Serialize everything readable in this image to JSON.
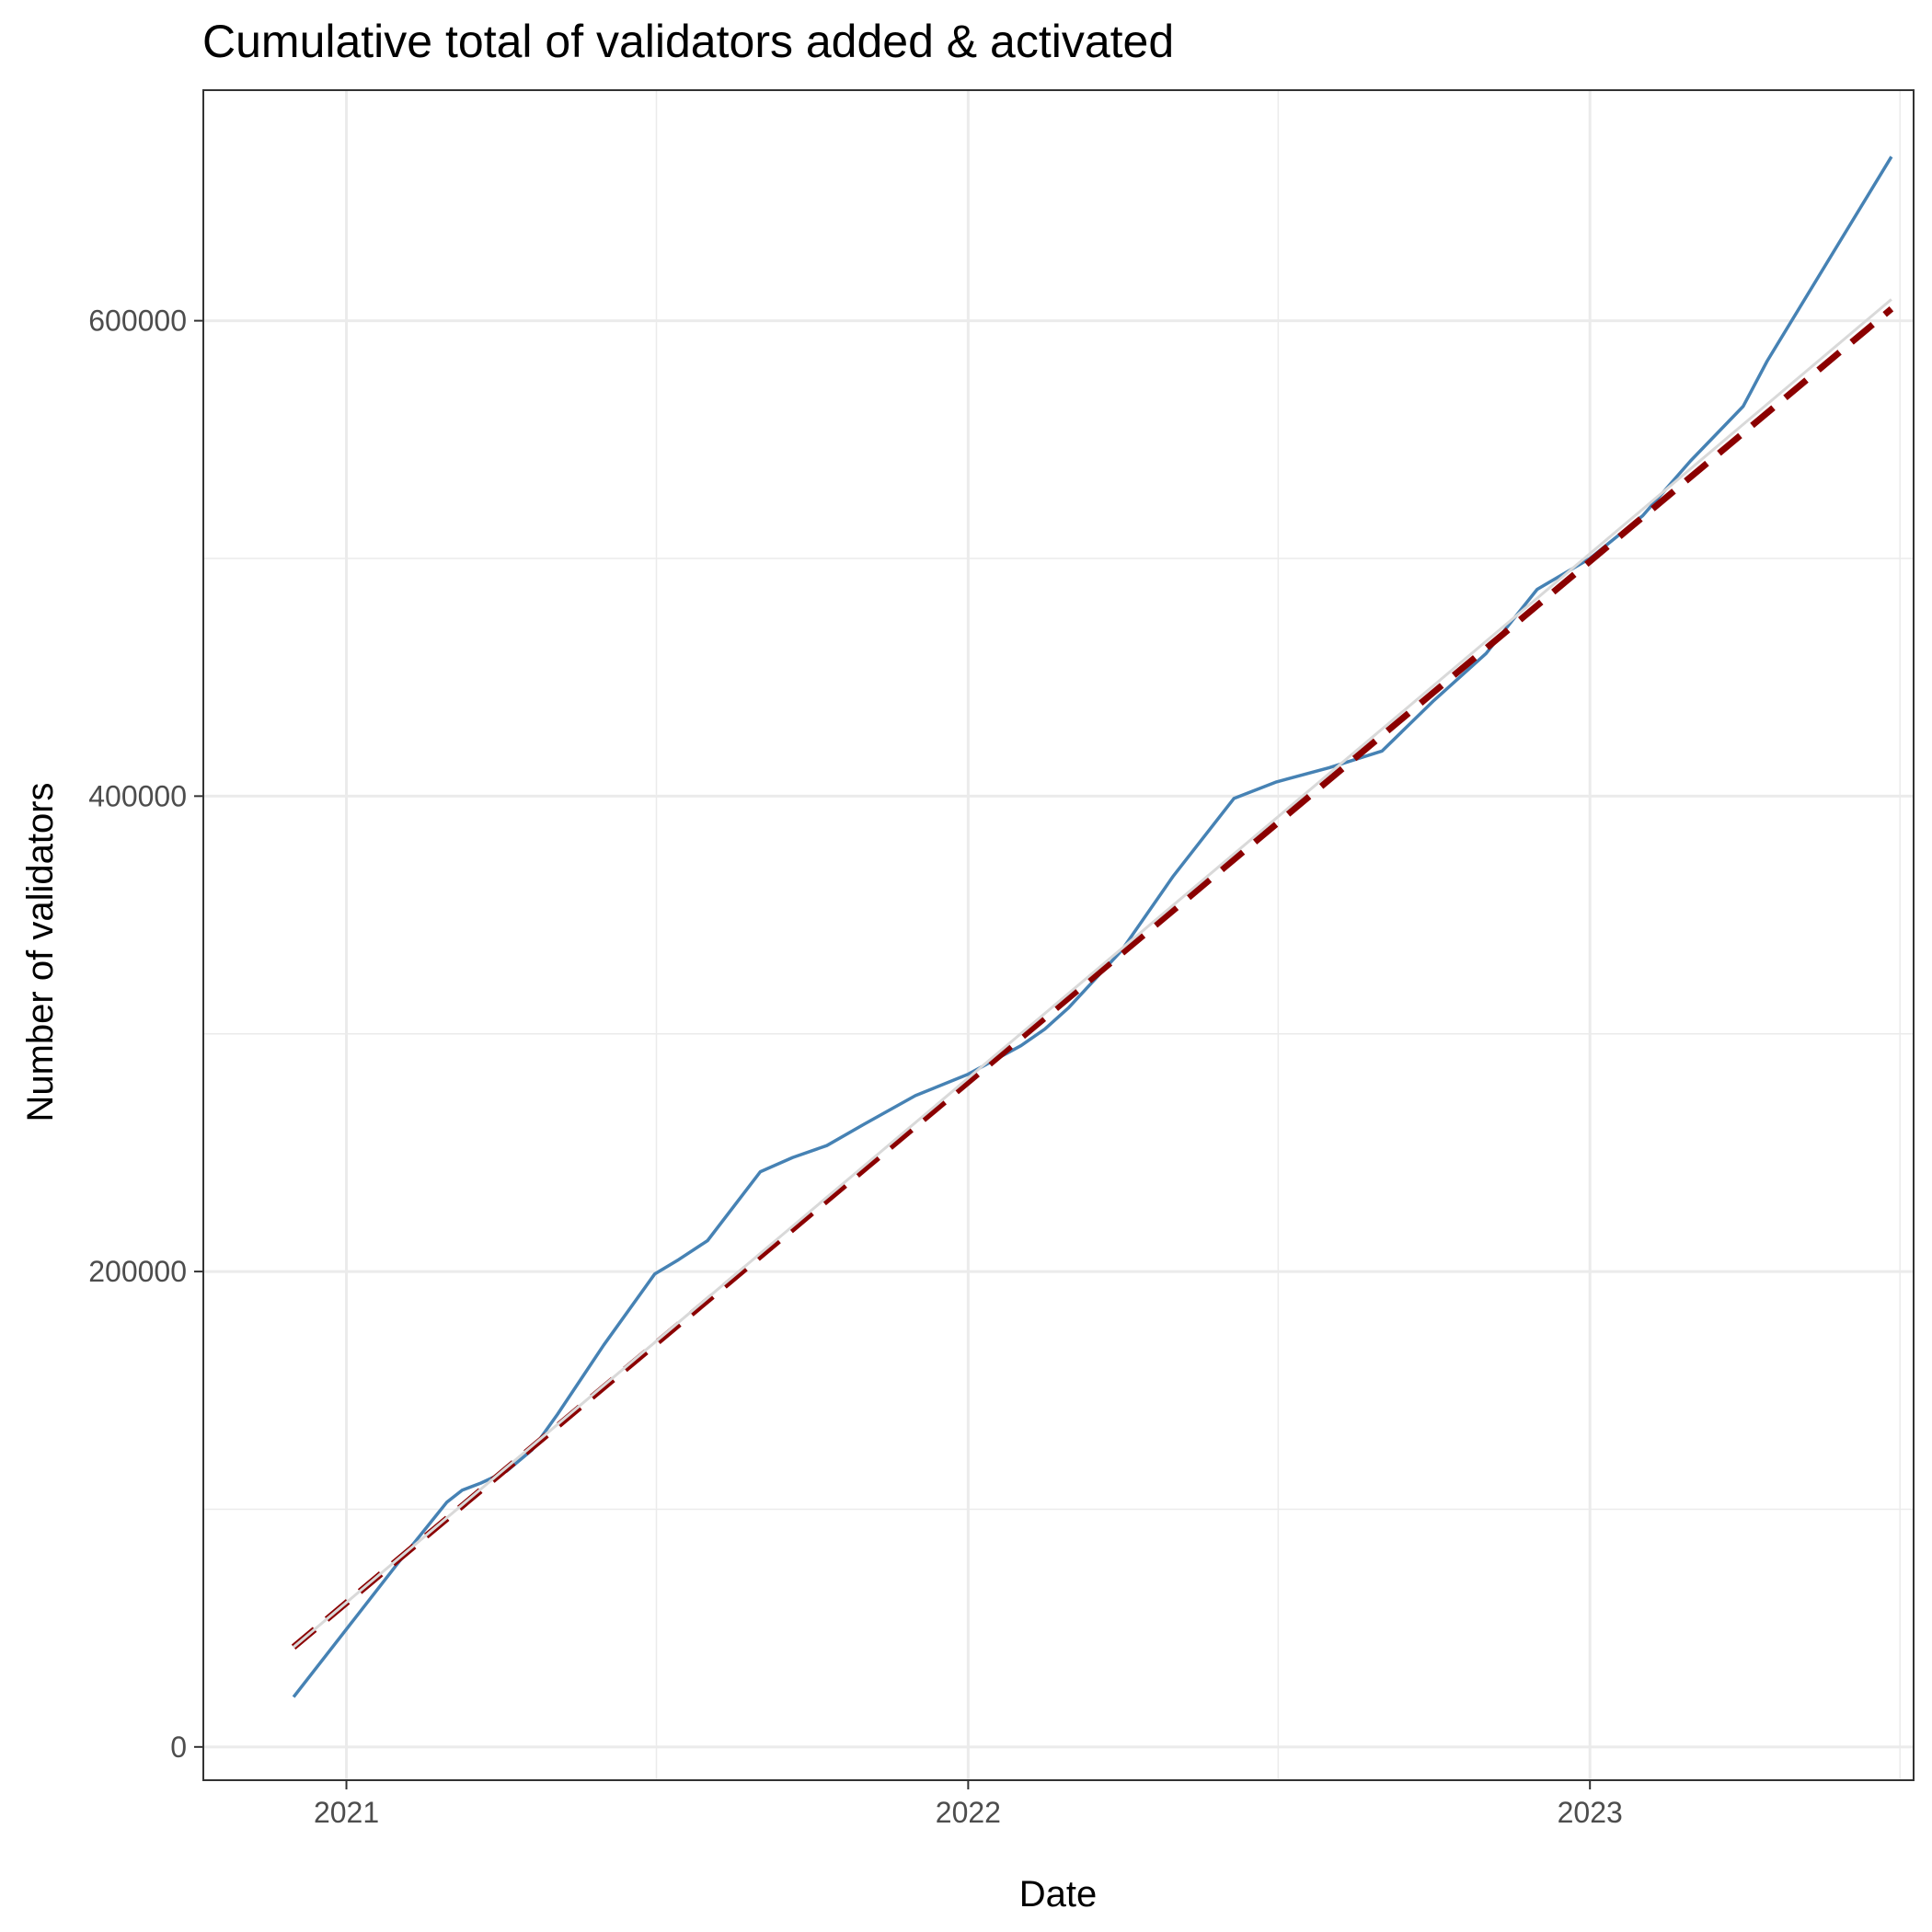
{
  "chart_data": {
    "type": "line",
    "title": "Cumulative total of validators added & activated",
    "xlabel": "Date",
    "ylabel": "Number of validators",
    "x_ticks": [
      "2021",
      "2022",
      "2023"
    ],
    "y_ticks": [
      "0",
      "200000",
      "400000",
      "600000"
    ],
    "xlim": [
      "2020-10-09",
      "2023-07-10"
    ],
    "ylim": [
      -14000,
      697000
    ],
    "grid": true,
    "legend": "none",
    "series": [
      {
        "style": "solid",
        "color": "#4682b4",
        "points": [
          [
            "2020-12-01",
            21000
          ],
          [
            "2021-02-01",
            78000
          ],
          [
            "2021-03-01",
            103000
          ],
          [
            "2021-03-10",
            108000
          ],
          [
            "2021-03-21",
            111000
          ],
          [
            "2021-04-05",
            116000
          ],
          [
            "2021-04-20",
            125000
          ],
          [
            "2021-05-05",
            140000
          ],
          [
            "2021-06-01",
            169000
          ],
          [
            "2021-07-01",
            199000
          ],
          [
            "2021-07-15",
            205000
          ],
          [
            "2021-08-01",
            213000
          ],
          [
            "2021-09-01",
            242000
          ],
          [
            "2021-09-20",
            248000
          ],
          [
            "2021-10-10",
            253000
          ],
          [
            "2021-11-01",
            262000
          ],
          [
            "2021-12-01",
            274000
          ],
          [
            "2022-01-01",
            283000
          ],
          [
            "2022-02-01",
            295000
          ],
          [
            "2022-02-15",
            302000
          ],
          [
            "2022-03-01",
            311000
          ],
          [
            "2022-04-01",
            335000
          ],
          [
            "2022-05-01",
            366000
          ],
          [
            "2022-06-06",
            399000
          ],
          [
            "2022-07-01",
            406000
          ],
          [
            "2022-08-01",
            412000
          ],
          [
            "2022-09-01",
            419000
          ],
          [
            "2022-10-01",
            440000
          ],
          [
            "2022-11-01",
            460000
          ],
          [
            "2022-12-01",
            487000
          ],
          [
            "2023-01-01",
            500000
          ],
          [
            "2023-02-01",
            518000
          ],
          [
            "2023-03-01",
            541000
          ],
          [
            "2023-04-01",
            564000
          ],
          [
            "2023-04-15",
            583000
          ],
          [
            "2023-06-27",
            669000
          ]
        ]
      },
      {
        "style": "dashed",
        "color": "#8b0000",
        "points": [
          [
            "2020-12-01",
            42000
          ],
          [
            "2023-06-27",
            605000
          ]
        ]
      },
      {
        "style": "solid",
        "color": "#d9d9d9",
        "points": [
          [
            "2020-12-01",
            42000
          ],
          [
            "2023-06-27",
            609000
          ]
        ]
      }
    ]
  }
}
